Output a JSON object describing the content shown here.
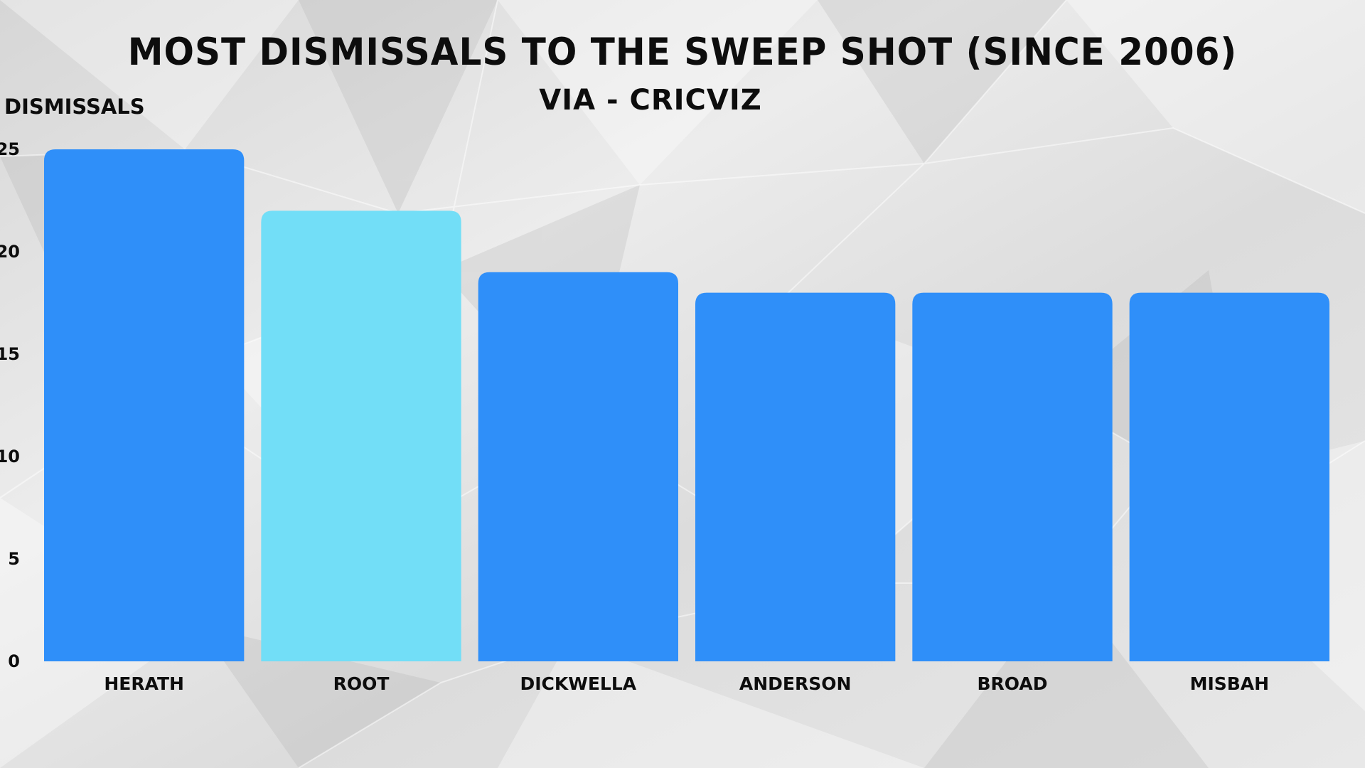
{
  "chart_data": {
    "type": "bar",
    "title": "MOST DISMISSALS TO THE SWEEP SHOT (SINCE 2006)",
    "subtitle": "VIA - CRICVIZ",
    "ylabel": "DISMISSALS",
    "xlabel": "",
    "categories": [
      "HERATH",
      "ROOT",
      "DICKWELLA",
      "ANDERSON",
      "BROAD",
      "MISBAH"
    ],
    "values": [
      25,
      22,
      19,
      18,
      18,
      18
    ],
    "ylim": [
      0,
      25
    ],
    "yticks": [
      0,
      5,
      10,
      15,
      20,
      25
    ],
    "grid": false,
    "legend": "none",
    "colors": {
      "bar": "#2f8ff9",
      "highlight": "#72def7",
      "highlight_category": "ROOT",
      "text": "#0d0d0d"
    }
  }
}
